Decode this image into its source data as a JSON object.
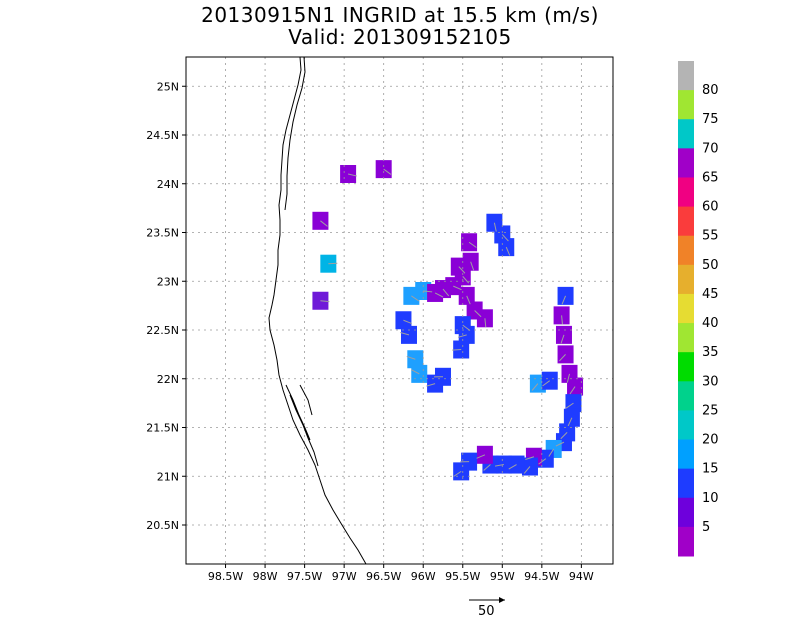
{
  "title": "20130915N1 INGRID at 15.5 km (m/s)",
  "subtitle": "Valid: 201309152105",
  "chart_data": {
    "type": "heatmap",
    "description_of_values": "Doppler wind speed (m/s) cells with wind vectors",
    "xlim": [
      -99.0,
      -93.6
    ],
    "ylim": [
      20.1,
      25.3
    ],
    "x_ticks": [
      {
        "value": -98.5,
        "label": "98.5W"
      },
      {
        "value": -98.0,
        "label": "98W"
      },
      {
        "value": -97.5,
        "label": "97.5W"
      },
      {
        "value": -97.0,
        "label": "97W"
      },
      {
        "value": -96.5,
        "label": "96.5W"
      },
      {
        "value": -96.0,
        "label": "96W"
      },
      {
        "value": -95.5,
        "label": "95.5W"
      },
      {
        "value": -95.0,
        "label": "95W"
      },
      {
        "value": -94.5,
        "label": "94.5W"
      },
      {
        "value": -94.0,
        "label": "94W"
      }
    ],
    "y_ticks": [
      {
        "value": 20.5,
        "label": "20.5N"
      },
      {
        "value": 21.0,
        "label": "21N"
      },
      {
        "value": 21.5,
        "label": "21.5N"
      },
      {
        "value": 22.0,
        "label": "22N"
      },
      {
        "value": 22.5,
        "label": "22.5N"
      },
      {
        "value": 23.0,
        "label": "23N"
      },
      {
        "value": 23.5,
        "label": "23.5N"
      },
      {
        "value": 24.0,
        "label": "24N"
      },
      {
        "value": 24.5,
        "label": "24.5N"
      },
      {
        "value": 25.0,
        "label": "25N"
      }
    ],
    "grid": true,
    "colorbar": {
      "labels": [
        "5",
        "10",
        "15",
        "20",
        "25",
        "30",
        "35",
        "40",
        "45",
        "50",
        "55",
        "60",
        "65",
        "70",
        "75",
        "80"
      ],
      "colors": [
        "#a000c8",
        "#6e00dc",
        "#1e3cff",
        "#00a0ff",
        "#00c8c8",
        "#00d28c",
        "#00dc00",
        "#a0e632",
        "#e6dc32",
        "#e6af2d",
        "#f08228",
        "#fa3c3c",
        "#f00082",
        "#a000c8",
        "#00c8c8",
        "#a0e632",
        "#b4b4b4"
      ]
    },
    "vector_reference_label": "50",
    "cells": [
      [
        -96.95,
        24.1,
        0
      ],
      [
        -96.5,
        24.15,
        0
      ],
      [
        -97.3,
        23.62,
        0
      ],
      [
        -97.2,
        23.18,
        4
      ],
      [
        -97.3,
        22.8,
        1
      ],
      [
        -96.15,
        22.85,
        3
      ],
      [
        -96.0,
        22.9,
        3
      ],
      [
        -95.85,
        22.88,
        0
      ],
      [
        -95.75,
        22.92,
        0
      ],
      [
        -95.62,
        22.95,
        0
      ],
      [
        -95.5,
        23.05,
        0
      ],
      [
        -95.4,
        23.2,
        0
      ],
      [
        -95.42,
        23.4,
        0
      ],
      [
        -95.55,
        23.15,
        0
      ],
      [
        -95.45,
        22.85,
        0
      ],
      [
        -95.35,
        22.7,
        0
      ],
      [
        -95.22,
        22.62,
        0
      ],
      [
        -95.5,
        22.55,
        2
      ],
      [
        -95.45,
        22.45,
        2
      ],
      [
        -95.52,
        22.3,
        2
      ],
      [
        -96.25,
        22.6,
        2
      ],
      [
        -96.18,
        22.45,
        2
      ],
      [
        -96.1,
        22.2,
        3
      ],
      [
        -96.05,
        22.05,
        3
      ],
      [
        -95.85,
        21.95,
        2
      ],
      [
        -95.75,
        22.02,
        2
      ],
      [
        -95.1,
        23.6,
        2
      ],
      [
        -95.0,
        23.48,
        2
      ],
      [
        -94.95,
        23.35,
        2
      ],
      [
        -94.2,
        22.85,
        2
      ],
      [
        -94.25,
        22.65,
        0
      ],
      [
        -94.22,
        22.45,
        0
      ],
      [
        -94.2,
        22.25,
        0
      ],
      [
        -94.15,
        22.05,
        0
      ],
      [
        -94.08,
        21.92,
        0
      ],
      [
        -94.1,
        21.75,
        2
      ],
      [
        -94.12,
        21.6,
        2
      ],
      [
        -94.18,
        21.45,
        2
      ],
      [
        -94.22,
        21.35,
        2
      ],
      [
        -94.35,
        21.28,
        3
      ],
      [
        -94.45,
        21.18,
        2
      ],
      [
        -94.6,
        21.2,
        0
      ],
      [
        -94.65,
        21.1,
        2
      ],
      [
        -94.82,
        21.12,
        2
      ],
      [
        -94.98,
        21.12,
        2
      ],
      [
        -95.15,
        21.12,
        2
      ],
      [
        -95.22,
        21.22,
        0
      ],
      [
        -95.42,
        21.15,
        2
      ],
      [
        -95.52,
        21.05,
        2
      ],
      [
        -94.55,
        21.95,
        3
      ],
      [
        -94.4,
        21.98,
        2
      ]
    ]
  }
}
